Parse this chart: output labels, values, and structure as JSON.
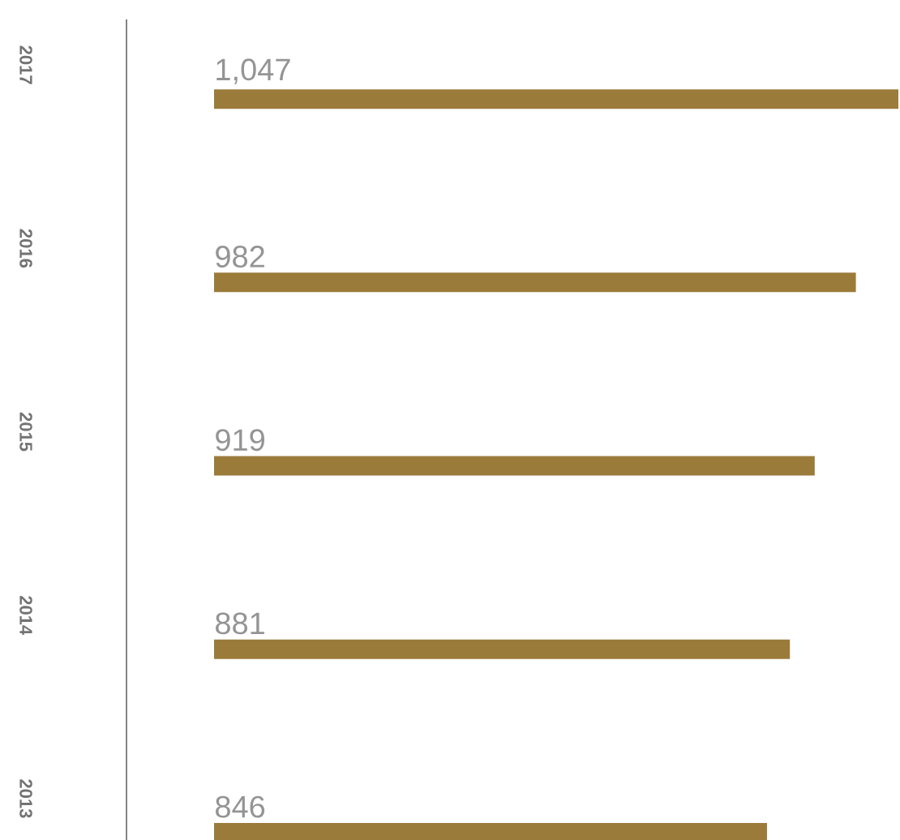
{
  "chart_data": {
    "type": "bar",
    "orientation": "horizontal",
    "categories": [
      "2017",
      "2016",
      "2015",
      "2014",
      "2013"
    ],
    "values": [
      1047,
      982,
      919,
      881,
      846
    ],
    "value_labels": [
      "1,047",
      "982",
      "919",
      "881",
      "846"
    ],
    "color": "#9b7b3a"
  }
}
